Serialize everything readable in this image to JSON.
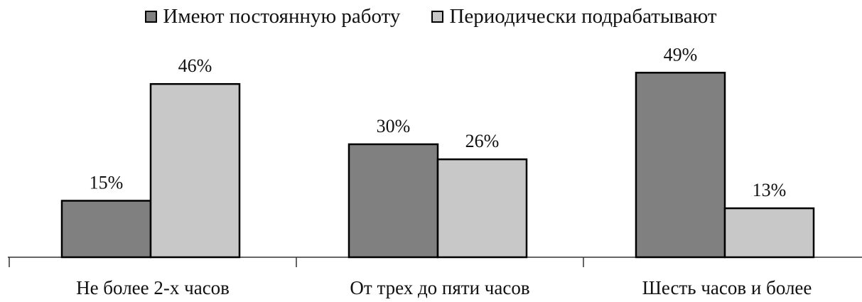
{
  "chart_data": {
    "type": "bar",
    "categories": [
      "Не более 2-х часов",
      "От трех до пяти часов",
      "Шесть часов и более"
    ],
    "series": [
      {
        "name": "Имеют постоянную работу",
        "values": [
          15,
          30,
          49
        ],
        "labels": [
          "15%",
          "30%",
          "49%"
        ],
        "color": "#808080"
      },
      {
        "name": "Периодически подрабатывают",
        "values": [
          46,
          26,
          13
        ],
        "labels": [
          "46%",
          "26%",
          "13%"
        ],
        "color": "#c8c8c8"
      }
    ],
    "unit": "%",
    "ylim": [
      0,
      50
    ],
    "legend_position": "top-center",
    "grid": false
  }
}
